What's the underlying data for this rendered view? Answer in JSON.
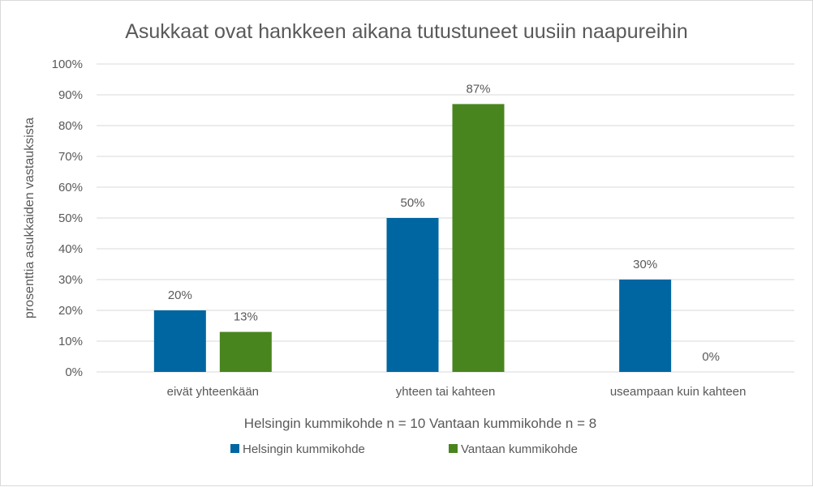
{
  "chart_data": {
    "type": "bar",
    "title": "Asukkaat ovat hankkeen aikana tutustuneet uusiin naapureihin",
    "xlabel": "Helsingin kummikohde n = 10 Vantaan kummikohde n = 8",
    "ylabel": "prosenttia asukkaiden vastauksista",
    "ylim": [
      0,
      100
    ],
    "yticks": [
      "0%",
      "10%",
      "20%",
      "30%",
      "40%",
      "50%",
      "60%",
      "70%",
      "80%",
      "90%",
      "100%"
    ],
    "grid": true,
    "legend_position": "bottom",
    "categories": [
      "eivät yhteenkään",
      "yhteen tai kahteen",
      "useampaan kuin kahteen"
    ],
    "series": [
      {
        "name": "Helsingin kummikohde",
        "color": "#0066A1",
        "values": [
          20,
          50,
          30
        ],
        "labels": [
          "20%",
          "50%",
          "30%"
        ]
      },
      {
        "name": "Vantaan kummikohde",
        "color": "#49851E",
        "values": [
          13,
          87,
          0
        ],
        "labels": [
          "13%",
          "87%",
          "0%"
        ]
      }
    ]
  }
}
